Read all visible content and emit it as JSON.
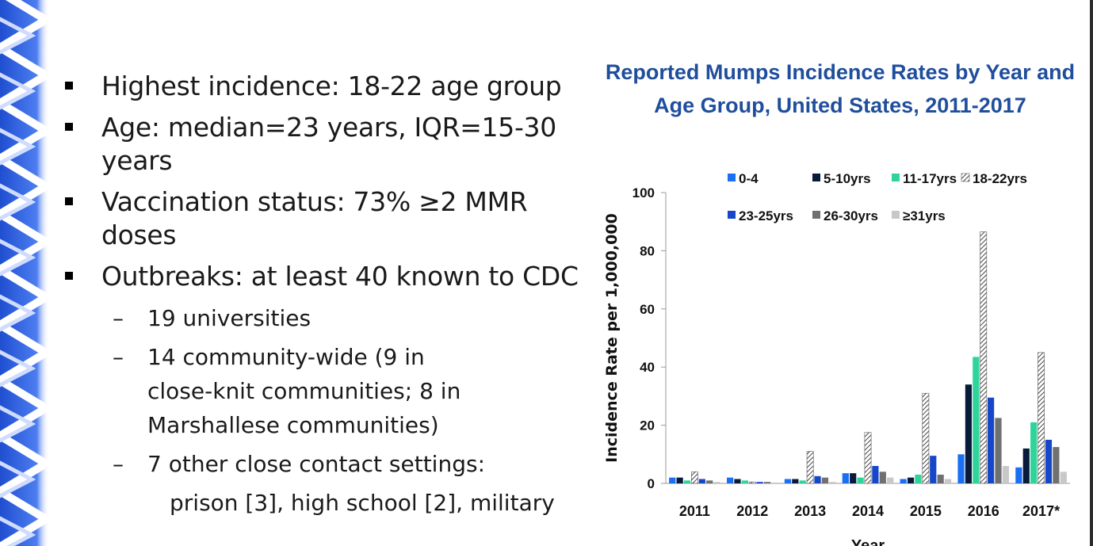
{
  "slide": {
    "bullets": [
      {
        "text": "Highest incidence: 18-22 age group"
      },
      {
        "text": "Age: median=23 years, IQR=15-30 years"
      },
      {
        "text": "Vaccination status: 73% ≥2 MMR doses"
      },
      {
        "text": "Outbreaks: at least 40 known to CDC",
        "sub": [
          {
            "text": "19 universities"
          },
          {
            "text": "14 community-wide (9 in close-knit communities; 8 in Marshallese communities)"
          },
          {
            "text": "7 other close contact settings:"
          }
        ],
        "continuation": "prison [3], high school [2], military"
      }
    ]
  },
  "colors": {
    "title": "#1f4e9c",
    "series": [
      "#1a6ff2",
      "#0a1a3a",
      "#2fd49a",
      "hatch",
      "#1747c9",
      "#707070",
      "#c8c8c8"
    ]
  },
  "chart_data": {
    "type": "bar",
    "title": "Reported Mumps Incidence Rates by Year and Age Group, United States, 2011-2017",
    "xlabel": "Year",
    "ylabel": "Incidence Rate per 1,000,000",
    "ylim": [
      0,
      100
    ],
    "yticks": [
      0,
      20,
      40,
      60,
      80,
      100
    ],
    "categories": [
      "2011",
      "2012",
      "2013",
      "2014",
      "2015",
      "2016",
      "2017*"
    ],
    "series": [
      {
        "name": "0-4",
        "values": [
          2,
          2,
          1.5,
          3.5,
          1.5,
          10,
          5.5
        ]
      },
      {
        "name": "5-10yrs",
        "values": [
          2,
          1.5,
          1.5,
          3.5,
          2,
          34,
          12
        ]
      },
      {
        "name": "11-17yrs",
        "values": [
          1,
          1,
          1,
          2,
          3,
          43.5,
          21
        ]
      },
      {
        "name": "18-22yrs",
        "values": [
          4,
          0.5,
          11,
          17.5,
          31,
          86.5,
          45
        ]
      },
      {
        "name": "23-25yrs",
        "values": [
          1.5,
          0.5,
          2.5,
          6,
          9.5,
          29.5,
          15
        ]
      },
      {
        "name": "26-30yrs",
        "values": [
          1,
          0.5,
          2,
          4,
          3,
          22.5,
          12.5
        ]
      },
      {
        "name": "≥31yrs",
        "values": [
          0.5,
          0.3,
          0.5,
          2,
          1.5,
          6,
          4
        ]
      }
    ],
    "legend_position": "top"
  }
}
